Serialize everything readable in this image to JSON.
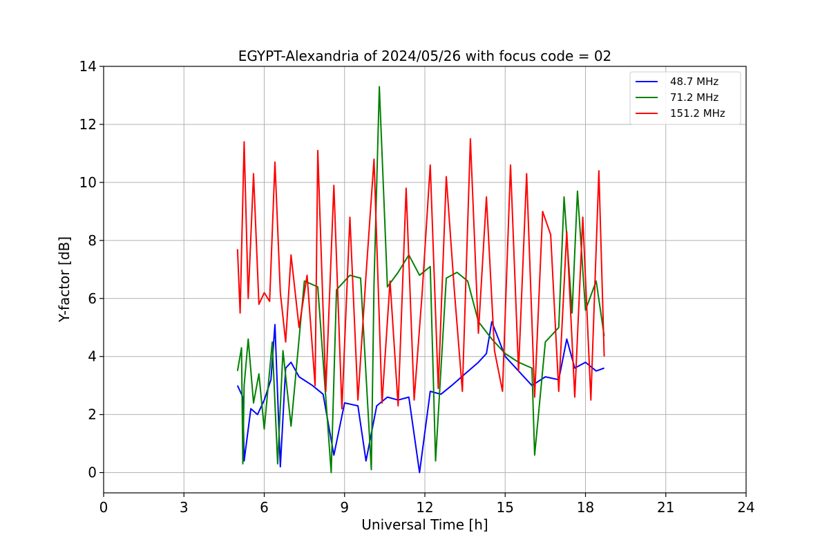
{
  "chart_data": {
    "type": "line",
    "title": "EGYPT-Alexandria of 2024/05/26 with focus code = 02",
    "xlabel": "Universal Time [h]",
    "ylabel": "Y-factor [dB]",
    "xlim": [
      0,
      24
    ],
    "ylim": [
      -0.7,
      14
    ],
    "xticks": [
      0,
      3,
      6,
      9,
      12,
      15,
      18,
      21,
      24
    ],
    "yticks": [
      0,
      2,
      4,
      6,
      8,
      10,
      12,
      14
    ],
    "grid": true,
    "legend_position": "top-right",
    "series": [
      {
        "name": " 48.7 MHz",
        "color": "#0000ff",
        "x": [
          5.0,
          5.2,
          5.25,
          5.5,
          5.75,
          6.0,
          6.25,
          6.4,
          6.6,
          6.8,
          7.0,
          7.3,
          7.8,
          8.2,
          8.6,
          9.0,
          9.5,
          9.8,
          10.2,
          10.6,
          11.0,
          11.4,
          11.8,
          12.2,
          12.6,
          13.0,
          13.5,
          14.0,
          14.3,
          14.5,
          15.0,
          15.5,
          16.0,
          16.5,
          17.0,
          17.3,
          17.6,
          18.0,
          18.4,
          18.7
        ],
        "y": [
          3.0,
          2.6,
          0.4,
          2.2,
          2.0,
          2.5,
          3.2,
          5.1,
          0.2,
          3.6,
          3.8,
          3.3,
          3.0,
          2.7,
          0.6,
          2.4,
          2.3,
          0.4,
          2.3,
          2.6,
          2.5,
          2.6,
          0.0,
          2.8,
          2.7,
          3.0,
          3.4,
          3.8,
          4.1,
          5.2,
          4.0,
          3.5,
          3.0,
          3.3,
          3.2,
          4.6,
          3.6,
          3.8,
          3.5,
          3.6
        ]
      },
      {
        "name": " 71.2 MHz",
        "color": "#008000",
        "x": [
          5.0,
          5.15,
          5.2,
          5.25,
          5.4,
          5.6,
          5.8,
          6.0,
          6.3,
          6.5,
          6.7,
          7.0,
          7.5,
          8.0,
          8.5,
          8.7,
          9.2,
          9.6,
          10.0,
          10.1,
          10.3,
          10.6,
          11.0,
          11.4,
          11.8,
          12.2,
          12.4,
          12.8,
          13.2,
          13.6,
          14.0,
          14.5,
          15.0,
          15.5,
          16.0,
          16.1,
          16.5,
          17.0,
          17.2,
          17.5,
          17.7,
          18.0,
          18.4,
          18.7
        ],
        "y": [
          3.5,
          4.3,
          0.3,
          3.0,
          4.6,
          2.4,
          3.4,
          1.5,
          4.5,
          0.3,
          4.2,
          1.6,
          6.6,
          6.4,
          0.0,
          6.3,
          6.8,
          6.7,
          0.1,
          6.5,
          13.3,
          6.4,
          6.9,
          7.5,
          6.8,
          7.1,
          0.4,
          6.7,
          6.9,
          6.6,
          5.2,
          4.6,
          4.1,
          3.8,
          3.6,
          0.6,
          4.5,
          5.0,
          9.5,
          5.5,
          9.7,
          5.6,
          6.6,
          4.7
        ]
      },
      {
        "name": "151.2 MHz",
        "color": "#ff0000",
        "x": [
          5.0,
          5.1,
          5.25,
          5.4,
          5.6,
          5.8,
          6.0,
          6.2,
          6.4,
          6.6,
          6.8,
          7.0,
          7.3,
          7.6,
          7.9,
          8.0,
          8.3,
          8.6,
          8.9,
          9.2,
          9.5,
          9.8,
          10.1,
          10.4,
          10.7,
          11.0,
          11.3,
          11.6,
          11.9,
          12.2,
          12.5,
          12.8,
          13.1,
          13.4,
          13.7,
          14.0,
          14.3,
          14.6,
          14.9,
          15.2,
          15.5,
          15.8,
          16.1,
          16.4,
          16.7,
          17.0,
          17.3,
          17.6,
          17.9,
          18.2,
          18.5,
          18.7
        ],
        "y": [
          7.7,
          5.5,
          11.4,
          6.0,
          10.3,
          5.8,
          6.2,
          5.9,
          10.7,
          6.2,
          4.5,
          7.5,
          5.0,
          6.8,
          3.0,
          11.1,
          2.8,
          9.9,
          2.2,
          8.8,
          2.5,
          6.8,
          10.8,
          2.4,
          6.6,
          2.3,
          9.8,
          2.5,
          6.2,
          10.6,
          2.9,
          10.2,
          6.3,
          2.8,
          11.5,
          4.8,
          9.5,
          4.2,
          2.8,
          10.6,
          3.5,
          10.3,
          2.6,
          9.0,
          8.2,
          2.8,
          8.3,
          2.6,
          8.8,
          2.5,
          10.4,
          4.0
        ]
      }
    ]
  }
}
